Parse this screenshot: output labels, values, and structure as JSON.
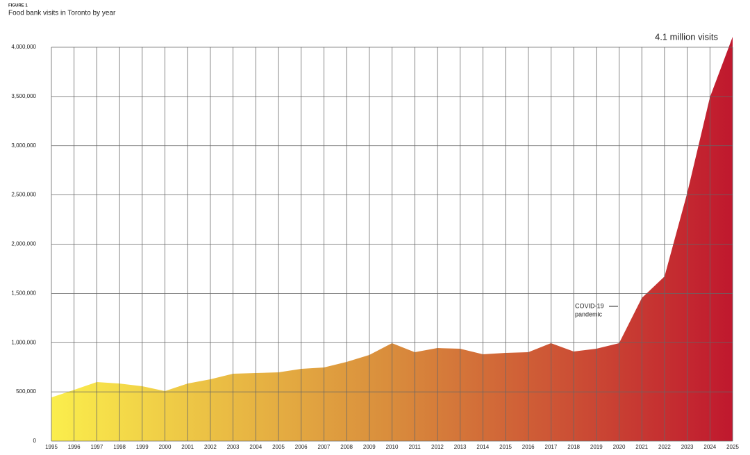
{
  "chart_data": {
    "type": "area",
    "label": "FIGURE 1",
    "title": "Food bank visits in Toronto by year",
    "x": [
      1995,
      1996,
      1997,
      1998,
      1999,
      2000,
      2001,
      2002,
      2003,
      2004,
      2005,
      2006,
      2007,
      2008,
      2009,
      2010,
      2011,
      2012,
      2013,
      2014,
      2015,
      2016,
      2017,
      2018,
      2019,
      2020,
      2021,
      2022,
      2023,
      2024,
      2025
    ],
    "series": [
      {
        "name": "Food bank visits",
        "values": [
          444000,
          520000,
          600000,
          585000,
          557000,
          508000,
          585000,
          628000,
          684000,
          691000,
          698000,
          734000,
          748000,
          804000,
          875000,
          995000,
          903000,
          945000,
          938000,
          882000,
          896000,
          903000,
          995000,
          910000,
          938000,
          995000,
          1453000,
          1672000,
          2519000,
          3492000,
          4106000
        ]
      }
    ],
    "gradient_colors": [
      "#fbee4c",
      "#d98c3c",
      "#c0182e"
    ],
    "xlim": [
      1995,
      2025
    ],
    "ylim": [
      0,
      4000000
    ],
    "yticks": [
      0,
      {
        "value": 500000,
        "label": "500,000"
      },
      {
        "value": 1000000,
        "label": "1,000,000"
      },
      {
        "value": 1500000,
        "label": "1,500,000"
      },
      {
        "value": 2000000,
        "label": "2,000,000"
      },
      {
        "value": 2500000,
        "label": "2,500,000"
      },
      {
        "value": 3000000,
        "label": "3,000,000"
      },
      {
        "value": 3500000,
        "label": "3,500,000"
      },
      {
        "value": 4000000,
        "label": "4,000,000"
      }
    ],
    "grid": true,
    "annotations": [
      "4.1 million visits",
      "COVID-19",
      "pandemic"
    ]
  }
}
